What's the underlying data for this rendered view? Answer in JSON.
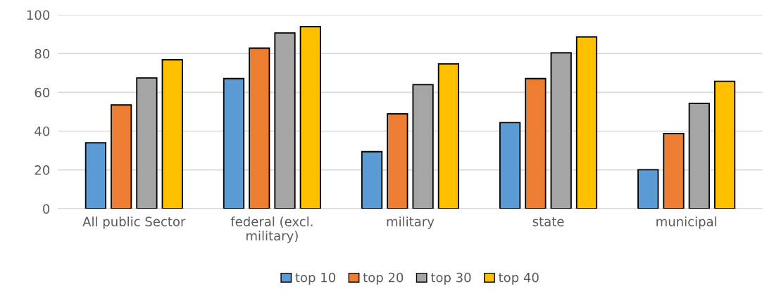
{
  "chart_data": {
    "type": "bar",
    "categories": [
      "All public Sector",
      "federal (excl.\nmilitary)",
      "military",
      "state",
      "municipal"
    ],
    "series": [
      {
        "name": "top 10",
        "color": "#5b9bd5",
        "values": [
          34.0,
          67.1,
          29.4,
          44.4,
          20.1
        ]
      },
      {
        "name": "top 20",
        "color": "#ed7d31",
        "values": [
          53.5,
          82.8,
          48.9,
          67.1,
          38.8
        ]
      },
      {
        "name": "top 30",
        "color": "#a5a5a5",
        "values": [
          67.4,
          90.6,
          64.0,
          80.4,
          54.3
        ]
      },
      {
        "name": "top 40",
        "color": "#ffc000",
        "values": [
          76.8,
          93.9,
          74.7,
          88.6,
          65.7
        ]
      }
    ],
    "ylim": [
      0,
      100
    ],
    "yticks": [
      0,
      20,
      40,
      60,
      80,
      100
    ],
    "grid": "y",
    "legend": "bottom"
  }
}
